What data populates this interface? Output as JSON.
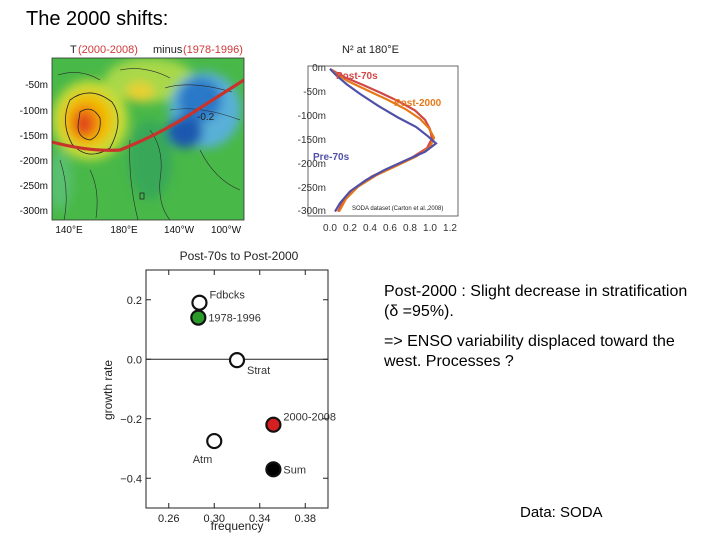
{
  "slide": {
    "title": "The 2000 shifts:",
    "note_line1": "Post-2000 : Slight decrease in stratification (δ =95%).",
    "note_line2": "=> ENSO variability displaced toward the west. Processes ?",
    "data_source": "Data: SODA"
  },
  "chart_data": [
    {
      "type": "heatmap",
      "title_prefix": "T",
      "title_a": "(2000-2008)",
      "title_mid": "minus",
      "title_b": "(1978-1996)",
      "y_tick_labels": [
        "-50m",
        "-100m",
        "-150m",
        "-200m",
        "-250m",
        "-300m"
      ],
      "x_tick_labels": [
        "140°E",
        "180°E",
        "140°W",
        "100°W"
      ],
      "contour_label": "-0.2",
      "ylim": [
        -320,
        0
      ],
      "colors": {
        "positive": "#f0c000",
        "negative": "#2a78c8",
        "thermocline": "#c8342c"
      }
    },
    {
      "type": "line",
      "title": "N² at 180°E",
      "y_tick_labels": [
        "0m",
        "-50m",
        "-100m",
        "-150m",
        "-200m",
        "-250m",
        "-300m"
      ],
      "x_tick_labels": [
        "0.0",
        "0.2",
        "0.4",
        "0.6",
        "0.8",
        "1.0",
        "1.2"
      ],
      "xlim": [
        0,
        1.2
      ],
      "ylim": [
        -310,
        0
      ],
      "annotation": "SODA dataset (Carton et al.,2008)",
      "series": [
        {
          "name": "Post-70s",
          "color": "#d04848",
          "points": [
            [
              0.0,
              -2
            ],
            [
              0.05,
              -8
            ],
            [
              0.15,
              -20
            ],
            [
              0.32,
              -35
            ],
            [
              0.5,
              -52
            ],
            [
              0.68,
              -70
            ],
            [
              0.85,
              -90
            ],
            [
              0.95,
              -110
            ],
            [
              1.0,
              -130
            ],
            [
              1.02,
              -150
            ],
            [
              0.97,
              -170
            ],
            [
              0.82,
              -190
            ],
            [
              0.62,
              -210
            ],
            [
              0.42,
              -230
            ],
            [
              0.25,
              -255
            ],
            [
              0.14,
              -280
            ],
            [
              0.08,
              -305
            ]
          ]
        },
        {
          "name": "Post-2000",
          "color": "#e67818",
          "points": [
            [
              0.0,
              -2
            ],
            [
              0.06,
              -12
            ],
            [
              0.18,
              -28
            ],
            [
              0.38,
              -48
            ],
            [
              0.58,
              -68
            ],
            [
              0.76,
              -88
            ],
            [
              0.9,
              -108
            ],
            [
              0.99,
              -128
            ],
            [
              1.04,
              -148
            ],
            [
              1.0,
              -168
            ],
            [
              0.86,
              -188
            ],
            [
              0.66,
              -208
            ],
            [
              0.46,
              -228
            ],
            [
              0.28,
              -252
            ],
            [
              0.16,
              -278
            ],
            [
              0.09,
              -305
            ]
          ]
        },
        {
          "name": "Pre-70s",
          "color": "#5050a8",
          "points": [
            [
              0.0,
              -2
            ],
            [
              0.06,
              -15
            ],
            [
              0.17,
              -35
            ],
            [
              0.3,
              -55
            ],
            [
              0.48,
              -80
            ],
            [
              0.68,
              -105
            ],
            [
              0.86,
              -125
            ],
            [
              0.98,
              -145
            ],
            [
              1.06,
              -160
            ],
            [
              0.95,
              -178
            ],
            [
              0.76,
              -196
            ],
            [
              0.55,
              -216
            ],
            [
              0.36,
              -238
            ],
            [
              0.2,
              -262
            ],
            [
              0.1,
              -287
            ],
            [
              0.05,
              -305
            ]
          ]
        }
      ]
    },
    {
      "type": "scatter",
      "title": "Post-70s to Post-2000",
      "xlabel": "frequency",
      "ylabel": "growth rate",
      "xlim": [
        0.24,
        0.4
      ],
      "ylim": [
        -0.5,
        0.3
      ],
      "x_ticks": [
        0.26,
        0.3,
        0.34,
        0.38
      ],
      "x_tick_labels": [
        "0.26",
        "0.30",
        "0.34",
        "0.38"
      ],
      "y_ticks": [
        0.2,
        0.0,
        -0.2,
        -0.4
      ],
      "y_tick_labels": [
        "0.2",
        "0.0",
        "−0.2",
        "−0.4"
      ],
      "points": [
        {
          "label": "Fdbcks",
          "x": 0.287,
          "y": 0.19,
          "fill": "#ffffff",
          "label_side": "right-up"
        },
        {
          "label": "1978-1996",
          "x": 0.286,
          "y": 0.14,
          "fill": "#2a9a2a",
          "label_side": "right"
        },
        {
          "label": "Strat",
          "x": 0.32,
          "y": -0.003,
          "fill": "#ffffff",
          "label_side": "right-down"
        },
        {
          "label": "2000-2008",
          "x": 0.352,
          "y": -0.22,
          "fill": "#d42020",
          "label_side": "right-up"
        },
        {
          "label": "Atm",
          "x": 0.3,
          "y": -0.275,
          "fill": "#ffffff",
          "label_side": "left-down"
        },
        {
          "label": "Sum",
          "x": 0.352,
          "y": -0.37,
          "fill": "#000000",
          "label_side": "right"
        }
      ]
    }
  ]
}
